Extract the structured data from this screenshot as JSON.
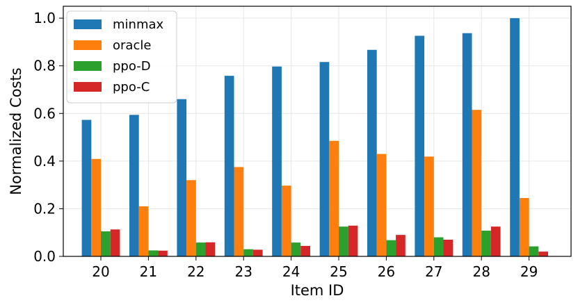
{
  "chart_data": {
    "type": "bar",
    "xlabel": "Item ID",
    "ylabel": "Normalized Costs",
    "categories": [
      "20",
      "21",
      "22",
      "23",
      "24",
      "25",
      "26",
      "27",
      "28",
      "29"
    ],
    "ylim": [
      0,
      1.05
    ],
    "yticks": [
      "0.0",
      "0.2",
      "0.4",
      "0.6",
      "0.8",
      "1.0"
    ],
    "grid": true,
    "legend_position": "top-left",
    "series": [
      {
        "name": "minmax",
        "color": "#1f77b4",
        "values": [
          0.573,
          0.594,
          0.66,
          0.758,
          0.797,
          0.816,
          0.867,
          0.926,
          0.937,
          1.0
        ]
      },
      {
        "name": "oracle",
        "color": "#ff7f0e",
        "values": [
          0.409,
          0.21,
          0.32,
          0.375,
          0.297,
          0.485,
          0.43,
          0.419,
          0.615,
          0.245
        ]
      },
      {
        "name": "ppo-D",
        "color": "#2ca02c",
        "values": [
          0.105,
          0.025,
          0.058,
          0.03,
          0.058,
          0.125,
          0.068,
          0.08,
          0.108,
          0.042
        ]
      },
      {
        "name": "ppo-C",
        "color": "#d62728",
        "values": [
          0.113,
          0.024,
          0.059,
          0.028,
          0.044,
          0.129,
          0.09,
          0.07,
          0.125,
          0.02
        ]
      }
    ]
  }
}
